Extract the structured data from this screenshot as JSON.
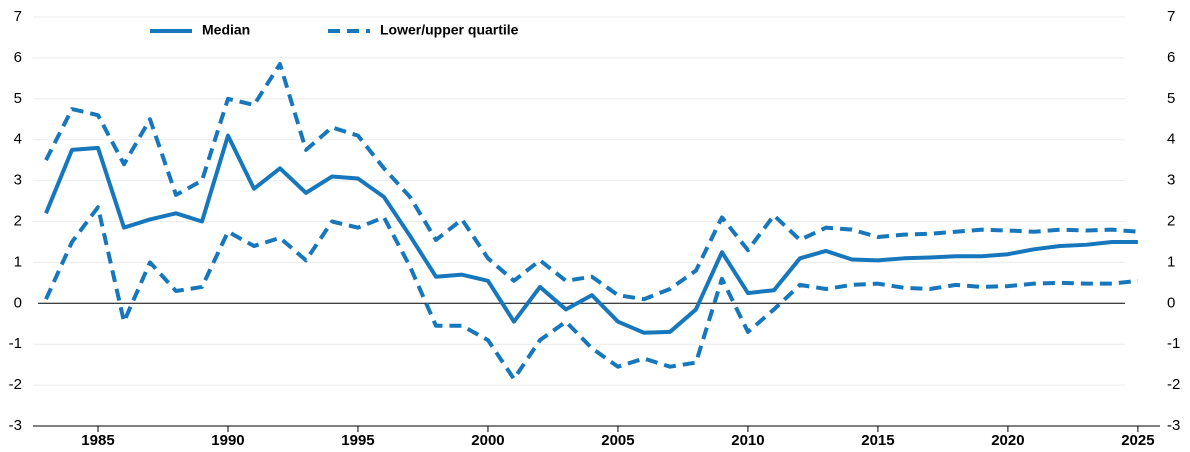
{
  "chart_data": {
    "type": "line",
    "x": [
      1983,
      1984,
      1985,
      1986,
      1987,
      1988,
      1989,
      1990,
      1991,
      1992,
      1993,
      1994,
      1995,
      1996,
      1997,
      1998,
      1999,
      2000,
      2001,
      2002,
      2003,
      2004,
      2005,
      2006,
      2007,
      2008,
      2009,
      2010,
      2011,
      2012,
      2013,
      2014,
      2015,
      2016,
      2017,
      2018,
      2019,
      2020,
      2021,
      2022,
      2023,
      2024,
      2025
    ],
    "series": [
      {
        "name": "Median",
        "color": "#1777bc",
        "dashed": false,
        "values": [
          2.2,
          3.75,
          3.8,
          1.85,
          2.05,
          2.2,
          2.0,
          4.1,
          2.8,
          3.3,
          2.7,
          3.1,
          3.05,
          2.6,
          1.65,
          0.65,
          0.7,
          0.55,
          -0.45,
          0.4,
          -0.15,
          0.2,
          -0.45,
          -0.72,
          -0.7,
          -0.15,
          1.25,
          0.25,
          0.32,
          1.1,
          1.28,
          1.07,
          1.05,
          1.1,
          1.12,
          1.15,
          1.15,
          1.2,
          1.32,
          1.4,
          1.43,
          1.5,
          1.5
        ]
      },
      {
        "name": "Lower/upper quartile",
        "color": "#1777bc",
        "dashed": true,
        "lower": [
          0.1,
          1.5,
          2.35,
          -0.45,
          1.0,
          0.3,
          0.4,
          1.75,
          1.4,
          1.6,
          1.05,
          2.0,
          1.85,
          2.1,
          0.9,
          -0.55,
          -0.55,
          -0.9,
          -1.85,
          -0.9,
          -0.45,
          -1.1,
          -1.55,
          -1.35,
          -1.55,
          -1.45,
          0.6,
          -0.7,
          -0.15,
          0.45,
          0.35,
          0.45,
          0.48,
          0.38,
          0.35,
          0.45,
          0.4,
          0.42,
          0.48,
          0.5,
          0.48,
          0.48,
          0.55
        ],
        "upper": [
          3.5,
          4.75,
          4.6,
          3.4,
          4.5,
          2.65,
          3.0,
          5.0,
          4.85,
          5.85,
          3.75,
          4.3,
          4.1,
          3.3,
          2.6,
          1.55,
          2.05,
          1.1,
          0.55,
          1.05,
          0.55,
          0.65,
          0.2,
          0.1,
          0.35,
          0.8,
          2.1,
          1.3,
          2.15,
          1.55,
          1.85,
          1.8,
          1.62,
          1.68,
          1.7,
          1.75,
          1.8,
          1.78,
          1.75,
          1.8,
          1.78,
          1.8,
          1.75
        ]
      }
    ],
    "xlim": [
      1982.5,
      2025.85
    ],
    "xticks": [
      1985,
      1990,
      1995,
      2000,
      2005,
      2010,
      2015,
      2020,
      2025
    ],
    "ylim": [
      -3,
      7
    ],
    "yticks": [
      -3,
      -2,
      -1,
      0,
      1,
      2,
      3,
      4,
      5,
      6,
      7
    ],
    "y2lim": [
      -3,
      7
    ],
    "y2ticks": [
      -3,
      -2,
      -1,
      0,
      1,
      2,
      3,
      4,
      5,
      6,
      7
    ],
    "grid": true
  }
}
